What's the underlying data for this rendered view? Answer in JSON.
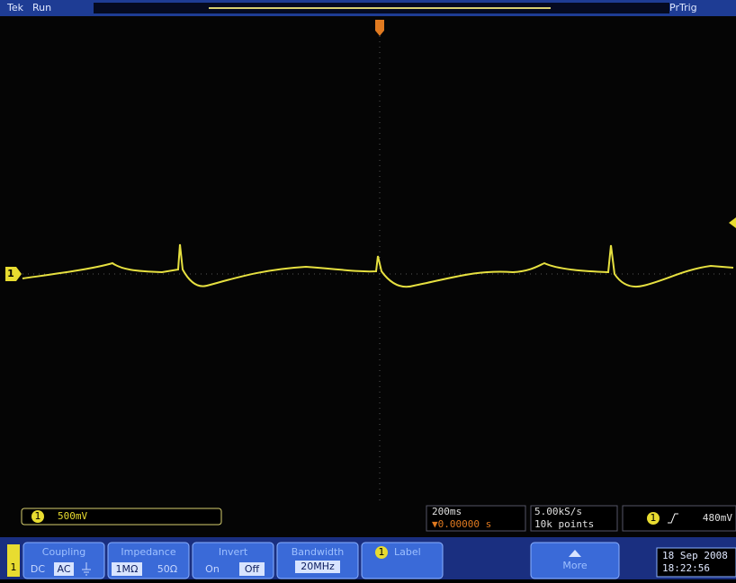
{
  "header": {
    "brand": "Tek",
    "state": "Run",
    "trigger_mode": "PrTrig"
  },
  "channel_marker": "1",
  "readouts": {
    "channel": "1",
    "scale": "500mV",
    "timebase": "200ms",
    "position": "▼0.00000 s",
    "sample_rate": "5.00kS/s",
    "record_length": "10k points",
    "trigger_channel": "1",
    "trigger_level": "480mV"
  },
  "menu": {
    "channel": "1",
    "coupling": {
      "label": "Coupling",
      "options": [
        "DC",
        "AC"
      ]
    },
    "impedance": {
      "label": "Impedance",
      "options": [
        "1MΩ",
        "50Ω"
      ]
    },
    "invert": {
      "label": "Invert",
      "options": [
        "On",
        "Off"
      ]
    },
    "bandwidth": {
      "label": "Bandwidth",
      "value": "20MHz"
    },
    "label": {
      "channel": "1",
      "label": "Label"
    },
    "more": "More",
    "date": "18 Sep 2008",
    "time": "18:22:56"
  }
}
